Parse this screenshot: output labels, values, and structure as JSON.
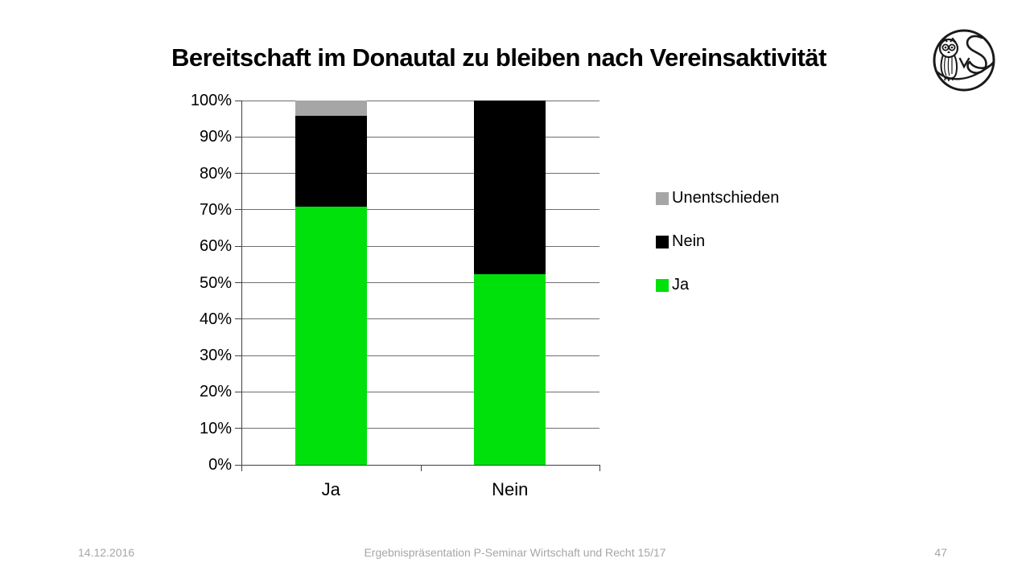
{
  "slide": {
    "title": "Bereitschaft im Donautal zu bleiben nach Vereinsaktivität"
  },
  "chart_data": {
    "type": "bar",
    "subtype": "stacked-100-percent",
    "title": "Bereitschaft im Donautal zu bleiben nach Vereinsaktivität",
    "categories": [
      "Ja",
      "Nein"
    ],
    "xlabel": "",
    "ylabel": "",
    "ylim": [
      0,
      100
    ],
    "ytick_step": 10,
    "ytick_suffix": "%",
    "grid": true,
    "legend_position": "right",
    "series": [
      {
        "name": "Ja",
        "color": "#00e10b",
        "values": [
          70.8,
          52.4
        ]
      },
      {
        "name": "Nein",
        "color": "#000000",
        "values": [
          25.0,
          47.6
        ]
      },
      {
        "name": "Unentschieden",
        "color": "#a6a6a6",
        "values": [
          4.2,
          0.0
        ]
      }
    ],
    "legend": [
      {
        "label": "Unentschieden",
        "color": "#a6a6a6"
      },
      {
        "label": "Nein",
        "color": "#000000"
      },
      {
        "label": "Ja",
        "color": "#00e10b"
      }
    ]
  },
  "footer": {
    "date": "14.12.2016",
    "center": "Ergebnispräsentation P-Seminar Wirtschaft und Recht 15/17",
    "page": "47"
  },
  "colors": {
    "grid": "#6e6e6e",
    "axis": "#404040",
    "footer_text": "#a6a6a6",
    "background": "#ffffff",
    "title_text": "#000000"
  }
}
